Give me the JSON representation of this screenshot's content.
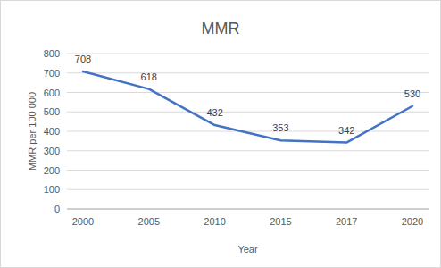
{
  "chart_data": {
    "type": "line",
    "title": "MMR",
    "x_label": "Year",
    "y_label": "MMR per 100 000",
    "categories": [
      "2000",
      "2005",
      "2010",
      "2015",
      "2017",
      "2020"
    ],
    "values": [
      708,
      618,
      432,
      353,
      342,
      530
    ],
    "color": "#4472c4",
    "ylim": [
      0,
      800
    ],
    "yticks": [
      0,
      100,
      200,
      300,
      400,
      500,
      600,
      700,
      800
    ],
    "grid": true,
    "data_labels": true
  }
}
